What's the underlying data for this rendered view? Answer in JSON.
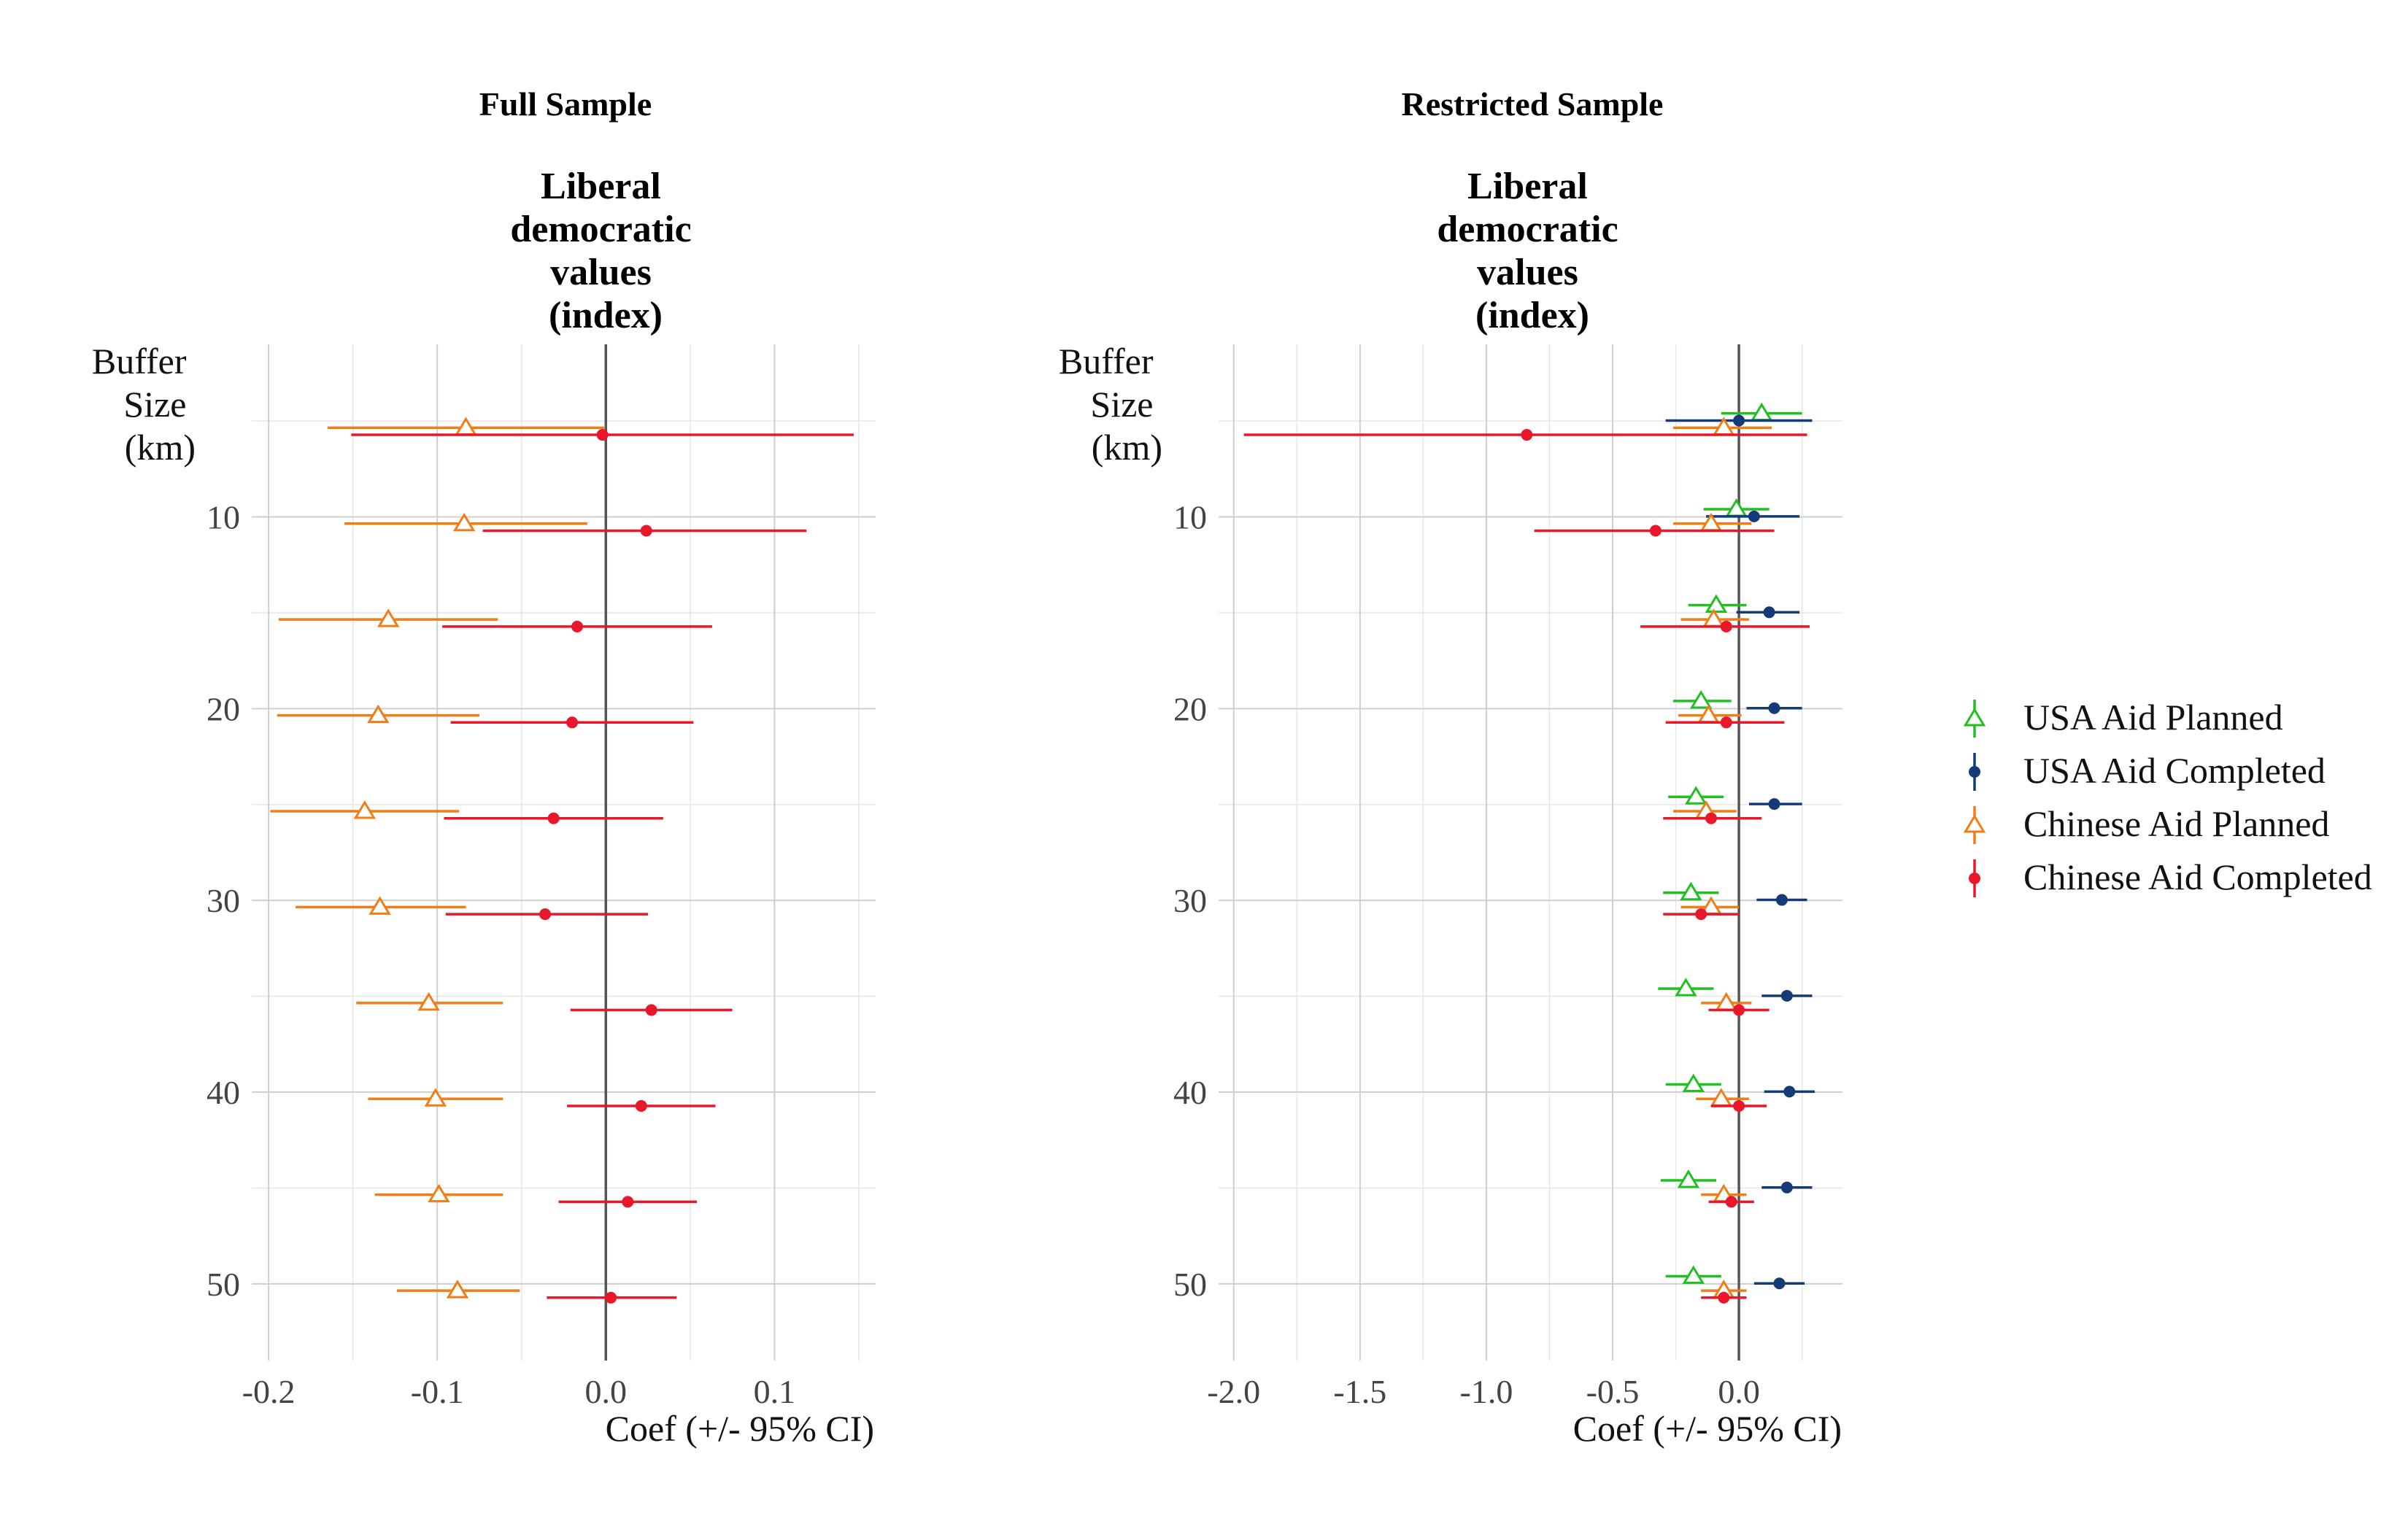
{
  "chart_data": [
    {
      "type": "coefficient-plot",
      "title": "Full Sample",
      "facet_title": [
        "Liberal",
        "democratic",
        "values",
        "(index)"
      ],
      "ylabel": [
        "Buffer",
        "Size",
        "(km)"
      ],
      "xlabel": "Coef (+/- 95% CI)",
      "xlim": [
        -0.21,
        0.16
      ],
      "xticks": [
        -0.2,
        -0.1,
        0.0,
        0.1
      ],
      "xtick_labels": [
        "-0.2",
        "-0.1",
        "0.0",
        "0.1"
      ],
      "ylim": [
        1,
        54
      ],
      "yticks": [
        10,
        20,
        30,
        40,
        50
      ],
      "ytick_labels": [
        "10",
        "20",
        "30",
        "40",
        "50"
      ],
      "y_minor": [
        5,
        15,
        25,
        35,
        45
      ],
      "grid": true,
      "series": [
        {
          "name": "Chinese Aid Planned",
          "key": "cap",
          "points": [
            {
              "buffer": 5,
              "coef": -0.083,
              "lo": -0.165,
              "hi": -0.001
            },
            {
              "buffer": 10,
              "coef": -0.084,
              "lo": -0.155,
              "hi": -0.011
            },
            {
              "buffer": 15,
              "coef": -0.129,
              "lo": -0.194,
              "hi": -0.064
            },
            {
              "buffer": 20,
              "coef": -0.135,
              "lo": -0.195,
              "hi": -0.075
            },
            {
              "buffer": 25,
              "coef": -0.143,
              "lo": -0.199,
              "hi": -0.087
            },
            {
              "buffer": 30,
              "coef": -0.134,
              "lo": -0.184,
              "hi": -0.083
            },
            {
              "buffer": 35,
              "coef": -0.105,
              "lo": -0.148,
              "hi": -0.061
            },
            {
              "buffer": 40,
              "coef": -0.101,
              "lo": -0.141,
              "hi": -0.061
            },
            {
              "buffer": 45,
              "coef": -0.099,
              "lo": -0.137,
              "hi": -0.061
            },
            {
              "buffer": 50,
              "coef": -0.088,
              "lo": -0.124,
              "hi": -0.051
            }
          ]
        },
        {
          "name": "Chinese Aid Completed",
          "key": "cac",
          "points": [
            {
              "buffer": 5,
              "coef": -0.002,
              "lo": -0.151,
              "hi": 0.147
            },
            {
              "buffer": 10,
              "coef": 0.024,
              "lo": -0.073,
              "hi": 0.119
            },
            {
              "buffer": 15,
              "coef": -0.017,
              "lo": -0.097,
              "hi": 0.063
            },
            {
              "buffer": 20,
              "coef": -0.02,
              "lo": -0.092,
              "hi": 0.052
            },
            {
              "buffer": 25,
              "coef": -0.031,
              "lo": -0.096,
              "hi": 0.034
            },
            {
              "buffer": 30,
              "coef": -0.036,
              "lo": -0.095,
              "hi": 0.025
            },
            {
              "buffer": 35,
              "coef": 0.027,
              "lo": -0.021,
              "hi": 0.075
            },
            {
              "buffer": 40,
              "coef": 0.021,
              "lo": -0.023,
              "hi": 0.065
            },
            {
              "buffer": 45,
              "coef": 0.013,
              "lo": -0.028,
              "hi": 0.054
            },
            {
              "buffer": 50,
              "coef": 0.003,
              "lo": -0.035,
              "hi": 0.042
            }
          ]
        }
      ]
    },
    {
      "type": "coefficient-plot",
      "title": "Restricted Sample",
      "facet_title": [
        "Liberal",
        "democratic",
        "values",
        "(index)"
      ],
      "ylabel": [
        "Buffer",
        "Size",
        "(km)"
      ],
      "xlabel": "Coef (+/- 95% CI)",
      "xlim": [
        -2.06,
        0.41
      ],
      "xticks": [
        -2.0,
        -1.5,
        -1.0,
        -0.5,
        0.0
      ],
      "xtick_labels": [
        "-2.0",
        "-1.5",
        "-1.0",
        "-0.5",
        "0.0"
      ],
      "ylim": [
        1,
        54
      ],
      "yticks": [
        10,
        20,
        30,
        40,
        50
      ],
      "ytick_labels": [
        "10",
        "20",
        "30",
        "40",
        "50"
      ],
      "y_minor": [
        5,
        15,
        25,
        35,
        45
      ],
      "grid": true,
      "series": [
        {
          "name": "USA Aid Planned",
          "key": "uap",
          "points": [
            {
              "buffer": 5,
              "coef": 0.09,
              "lo": -0.07,
              "hi": 0.25
            },
            {
              "buffer": 10,
              "coef": -0.01,
              "lo": -0.14,
              "hi": 0.12
            },
            {
              "buffer": 15,
              "coef": -0.09,
              "lo": -0.2,
              "hi": 0.03
            },
            {
              "buffer": 20,
              "coef": -0.15,
              "lo": -0.26,
              "hi": -0.03
            },
            {
              "buffer": 25,
              "coef": -0.17,
              "lo": -0.28,
              "hi": -0.06
            },
            {
              "buffer": 30,
              "coef": -0.19,
              "lo": -0.3,
              "hi": -0.08
            },
            {
              "buffer": 35,
              "coef": -0.21,
              "lo": -0.32,
              "hi": -0.1
            },
            {
              "buffer": 40,
              "coef": -0.18,
              "lo": -0.29,
              "hi": -0.07
            },
            {
              "buffer": 45,
              "coef": -0.2,
              "lo": -0.31,
              "hi": -0.09
            },
            {
              "buffer": 50,
              "coef": -0.18,
              "lo": -0.29,
              "hi": -0.07
            }
          ]
        },
        {
          "name": "USA Aid Completed",
          "key": "uac",
          "points": [
            {
              "buffer": 5,
              "coef": 0.0,
              "lo": -0.29,
              "hi": 0.29
            },
            {
              "buffer": 10,
              "coef": 0.06,
              "lo": -0.13,
              "hi": 0.24
            },
            {
              "buffer": 15,
              "coef": 0.12,
              "lo": -0.01,
              "hi": 0.24
            },
            {
              "buffer": 20,
              "coef": 0.14,
              "lo": 0.03,
              "hi": 0.25
            },
            {
              "buffer": 25,
              "coef": 0.14,
              "lo": 0.04,
              "hi": 0.25
            },
            {
              "buffer": 30,
              "coef": 0.17,
              "lo": 0.07,
              "hi": 0.27
            },
            {
              "buffer": 35,
              "coef": 0.19,
              "lo": 0.09,
              "hi": 0.29
            },
            {
              "buffer": 40,
              "coef": 0.2,
              "lo": 0.1,
              "hi": 0.3
            },
            {
              "buffer": 45,
              "coef": 0.19,
              "lo": 0.09,
              "hi": 0.29
            },
            {
              "buffer": 50,
              "coef": 0.16,
              "lo": 0.06,
              "hi": 0.26
            }
          ]
        },
        {
          "name": "Chinese Aid Planned",
          "key": "cap",
          "points": [
            {
              "buffer": 5,
              "coef": -0.06,
              "lo": -0.26,
              "hi": 0.13
            },
            {
              "buffer": 10,
              "coef": -0.11,
              "lo": -0.26,
              "hi": 0.05
            },
            {
              "buffer": 15,
              "coef": -0.1,
              "lo": -0.23,
              "hi": 0.04
            },
            {
              "buffer": 20,
              "coef": -0.12,
              "lo": -0.24,
              "hi": 0.01
            },
            {
              "buffer": 25,
              "coef": -0.13,
              "lo": -0.26,
              "hi": -0.01
            },
            {
              "buffer": 30,
              "coef": -0.11,
              "lo": -0.23,
              "hi": 0.0
            },
            {
              "buffer": 35,
              "coef": -0.05,
              "lo": -0.15,
              "hi": 0.05
            },
            {
              "buffer": 40,
              "coef": -0.07,
              "lo": -0.17,
              "hi": 0.04
            },
            {
              "buffer": 45,
              "coef": -0.06,
              "lo": -0.15,
              "hi": 0.03
            },
            {
              "buffer": 50,
              "coef": -0.06,
              "lo": -0.15,
              "hi": 0.03
            }
          ]
        },
        {
          "name": "Chinese Aid Completed",
          "key": "cac",
          "points": [
            {
              "buffer": 5,
              "coef": -0.84,
              "lo": -1.96,
              "hi": 0.27
            },
            {
              "buffer": 10,
              "coef": -0.33,
              "lo": -0.81,
              "hi": 0.14
            },
            {
              "buffer": 15,
              "coef": -0.05,
              "lo": -0.39,
              "hi": 0.28
            },
            {
              "buffer": 20,
              "coef": -0.05,
              "lo": -0.29,
              "hi": 0.18
            },
            {
              "buffer": 25,
              "coef": -0.11,
              "lo": -0.3,
              "hi": 0.09
            },
            {
              "buffer": 30,
              "coef": -0.15,
              "lo": -0.3,
              "hi": 0.0
            },
            {
              "buffer": 35,
              "coef": 0.0,
              "lo": -0.12,
              "hi": 0.12
            },
            {
              "buffer": 40,
              "coef": 0.0,
              "lo": -0.11,
              "hi": 0.11
            },
            {
              "buffer": 45,
              "coef": -0.03,
              "lo": -0.12,
              "hi": 0.06
            },
            {
              "buffer": 50,
              "coef": -0.06,
              "lo": -0.15,
              "hi": 0.03
            }
          ]
        }
      ]
    }
  ],
  "styles": {
    "uap": {
      "color": "#21c021",
      "marker": "triangle-open",
      "offset": -0.4
    },
    "uac": {
      "color": "#143a78",
      "marker": "dot",
      "offset": -0.025
    },
    "cap": {
      "color": "#f07d16",
      "marker": "triangle-open",
      "offset": 0.35
    },
    "cac": {
      "color": "#e8172a",
      "marker": "dot",
      "offset": 0.72
    }
  },
  "legend": {
    "position": "right",
    "items": [
      {
        "label": "USA Aid Planned",
        "key": "uap"
      },
      {
        "label": "USA Aid Completed",
        "key": "uac"
      },
      {
        "label": "Chinese Aid Planned",
        "key": "cap"
      },
      {
        "label": "Chinese Aid Completed",
        "key": "cac"
      }
    ]
  }
}
